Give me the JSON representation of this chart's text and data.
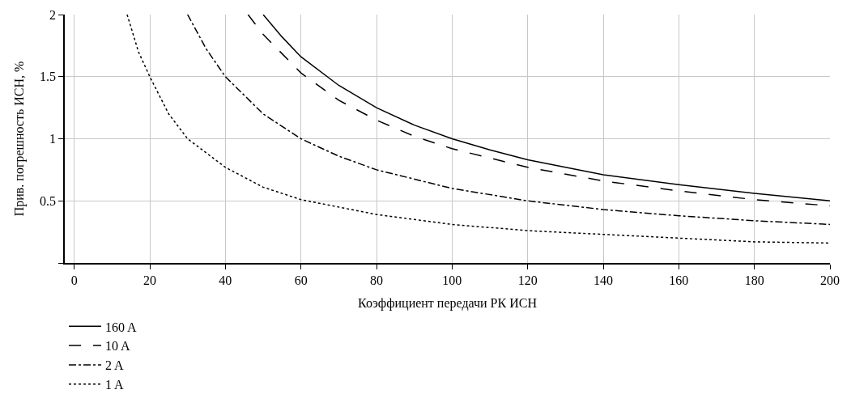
{
  "chart_data": {
    "type": "line",
    "xlabel": "Коэффициент передачи РК ИСН",
    "ylabel": "Прив. погрешность ИСН, %",
    "xlim": [
      -2.5,
      200
    ],
    "xticks": [
      0,
      20,
      40,
      60,
      80,
      100,
      120,
      140,
      160,
      180,
      200
    ],
    "ylim": [
      0,
      2
    ],
    "yticks": [
      {
        "value": 0,
        "label": null
      },
      0.5,
      1,
      1.5,
      2
    ],
    "grid": true,
    "legend": "bottom left",
    "marker": "none",
    "series": [
      {
        "name": "160 A",
        "color": "#000000",
        "line_style": "solid",
        "x": [
          50,
          55,
          60,
          70,
          80,
          90,
          100,
          110,
          120,
          140,
          160,
          180,
          200
        ],
        "values": [
          2.0,
          1.82,
          1.66,
          1.43,
          1.25,
          1.11,
          1.0,
          0.91,
          0.83,
          0.71,
          0.63,
          0.56,
          0.5
        ]
      },
      {
        "name": "10 A",
        "color": "#000000",
        "line_style": "dashed",
        "x": [
          46,
          50,
          60,
          70,
          80,
          90,
          100,
          120,
          140,
          160,
          180,
          200
        ],
        "values": [
          2.0,
          1.84,
          1.53,
          1.31,
          1.15,
          1.02,
          0.92,
          0.77,
          0.66,
          0.58,
          0.51,
          0.46
        ]
      },
      {
        "name": "2 A",
        "color": "#000000",
        "line_style": "dashdot",
        "x": [
          30,
          35,
          40,
          50,
          60,
          70,
          80,
          100,
          120,
          140,
          160,
          180,
          200
        ],
        "values": [
          2.0,
          1.72,
          1.5,
          1.2,
          1.0,
          0.86,
          0.75,
          0.6,
          0.5,
          0.43,
          0.38,
          0.34,
          0.31
        ]
      },
      {
        "name": "1 A",
        "color": "#000000",
        "line_style": "dotted",
        "x": [
          14,
          17,
          20,
          25,
          30,
          40,
          50,
          60,
          80,
          100,
          120,
          140,
          160,
          180,
          200
        ],
        "values": [
          2.0,
          1.7,
          1.5,
          1.2,
          1.0,
          0.77,
          0.61,
          0.51,
          0.39,
          0.31,
          0.26,
          0.23,
          0.2,
          0.17,
          0.16
        ]
      }
    ]
  }
}
